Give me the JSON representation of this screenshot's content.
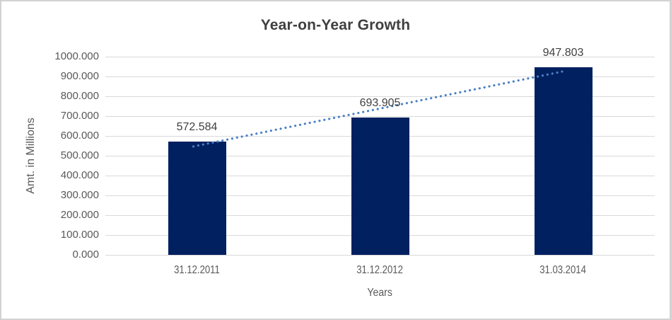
{
  "window": {
    "background": "#ffffff",
    "border_color": "#d2d2d2"
  },
  "chart_data": {
    "type": "bar",
    "title": "Year-on-Year Growth",
    "categories": [
      "31.12.2011",
      "31.12.2012",
      "31.03.2014"
    ],
    "values": [
      572.584,
      693.905,
      947.803
    ],
    "data_labels": [
      "572.584",
      "693.905",
      "947.803"
    ],
    "xlabel": "Years",
    "ylabel": "Amt. in Millions",
    "ylim": [
      0,
      1000
    ],
    "y_tick_step": 100,
    "y_tick_labels": [
      "1000.000",
      "900.000",
      "800.000",
      "700.000",
      "600.000",
      "500.000",
      "400.000",
      "300.000",
      "200.000",
      "100.000",
      "0.000"
    ],
    "grid": "horizontal",
    "legend": "none",
    "trendline": {
      "type": "linear",
      "style": "dotted",
      "color": "#4a80c4"
    },
    "colors": {
      "bar": "#002060",
      "gridline": "#d9d9d9",
      "title_text": "#3f3f3f",
      "data_label_text": "#404040",
      "tick_text": "#595959"
    }
  }
}
